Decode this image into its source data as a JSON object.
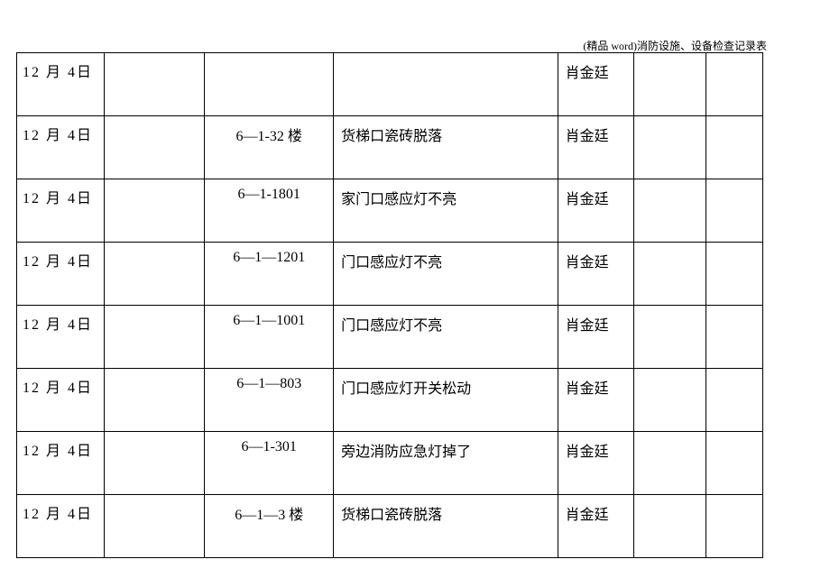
{
  "header_text": "(精品 word)消防设施、设备检查记录表",
  "table": {
    "columns": [
      {
        "key": "date",
        "class": "col-date"
      },
      {
        "key": "c2",
        "class": "col-2"
      },
      {
        "key": "location",
        "class": "col-location"
      },
      {
        "key": "issue",
        "class": "col-issue"
      },
      {
        "key": "name",
        "class": "col-name"
      },
      {
        "key": "c6",
        "class": "col-6"
      },
      {
        "key": "c7",
        "class": "col-7"
      }
    ],
    "rows": [
      {
        "date": "12 月 4日",
        "c2": "",
        "location": "",
        "issue": "",
        "name": "肖金廷",
        "c6": "",
        "c7": ""
      },
      {
        "date": "12 月 4日",
        "c2": "",
        "location": "6—1-32 楼",
        "issue": "货梯口瓷砖脱落",
        "name": "肖金廷",
        "c6": "",
        "c7": ""
      },
      {
        "date": "12 月 4日",
        "c2": "",
        "location": "6—1-1801",
        "issue": "家门口感应灯不亮",
        "name": "肖金廷",
        "c6": "",
        "c7": ""
      },
      {
        "date": "12 月 4日",
        "c2": "",
        "location": "6—1—1201",
        "issue": "门口感应灯不亮",
        "name": "肖金廷",
        "c6": "",
        "c7": ""
      },
      {
        "date": "12 月 4日",
        "c2": "",
        "location": "6—1—1001",
        "issue": "门口感应灯不亮",
        "name": "肖金廷",
        "c6": "",
        "c7": ""
      },
      {
        "date": "12 月 4日",
        "c2": "",
        "location": "6—1—803",
        "issue": "门口感应灯开关松动",
        "name": "肖金廷",
        "c6": "",
        "c7": ""
      },
      {
        "date": "12 月 4日",
        "c2": "",
        "location": "6—1-301",
        "issue": "旁边消防应急灯掉了",
        "name": "肖金廷",
        "c6": "",
        "c7": ""
      },
      {
        "date": "12 月 4日",
        "c2": "",
        "location": "6—1—3 楼",
        "issue": "货梯口瓷砖脱落",
        "name": "肖金廷",
        "c6": "",
        "c7": ""
      }
    ],
    "border_color": "#000000",
    "text_color": "#000000",
    "background_color": "#ffffff",
    "font_size": 16
  }
}
